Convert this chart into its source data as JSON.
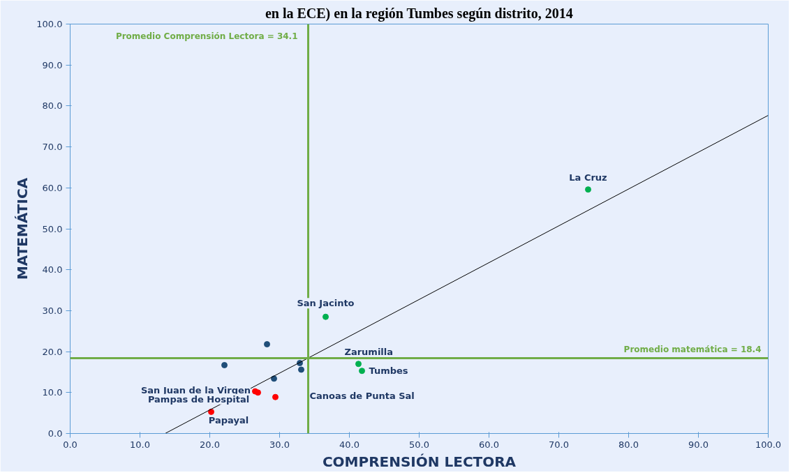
{
  "chart_data": {
    "type": "scatter",
    "title": "en la ECE) en la región Tumbes según distrito, 2014",
    "xlabel": "COMPRENSIÓN LECTORA",
    "ylabel": "MATEMÁTICA",
    "xlim": [
      0,
      100
    ],
    "ylim": [
      0,
      100
    ],
    "xticks": [
      {
        "value": 0,
        "label": "0.0"
      },
      {
        "value": 10,
        "label": "10.0"
      },
      {
        "value": 20,
        "label": "20.0"
      },
      {
        "value": 30,
        "label": "30.0"
      },
      {
        "value": 40,
        "label": "40.0"
      },
      {
        "value": 50,
        "label": "50.0"
      },
      {
        "value": 60,
        "label": "60.0"
      },
      {
        "value": 70,
        "label": "70.0"
      },
      {
        "value": 80,
        "label": "80.0"
      },
      {
        "value": 90,
        "label": "90.0"
      },
      {
        "value": 100,
        "label": "100.0"
      }
    ],
    "yticks": [
      {
        "value": 0,
        "label": "0.0"
      },
      {
        "value": 10,
        "label": "10.0"
      },
      {
        "value": 20,
        "label": "20.0"
      },
      {
        "value": 30,
        "label": "30.0"
      },
      {
        "value": 40,
        "label": "40.0"
      },
      {
        "value": 50,
        "label": "50.0"
      },
      {
        "value": 60,
        "label": "60.0"
      },
      {
        "value": 70,
        "label": "70.0"
      },
      {
        "value": 80,
        "label": "80.0"
      },
      {
        "value": 90,
        "label": "90.0"
      },
      {
        "value": 100,
        "label": "100.0"
      }
    ],
    "grid": false,
    "marker": "circle",
    "series": [
      {
        "color": "#00b050",
        "x": [
          36.6,
          41.3,
          41.8,
          74.2
        ],
        "values": [
          28.5,
          17.0,
          15.3,
          59.6
        ]
      },
      {
        "color": "#1f4e79",
        "x": [
          28.2,
          22.1,
          32.9,
          33.1,
          29.2
        ],
        "values": [
          21.8,
          16.7,
          17.2,
          15.6,
          13.4
        ]
      },
      {
        "color": "#ff0000",
        "x": [
          26.5,
          26.9,
          29.4,
          20.2
        ],
        "values": [
          10.3,
          10.0,
          8.9,
          5.3
        ]
      },
      {
        "type": "line",
        "marker": "none",
        "color": "#000000",
        "x": [
          13.6,
          100
        ],
        "values": [
          0,
          77.7
        ]
      }
    ],
    "ref_lines": [
      {
        "axis": "x",
        "value": 34.1,
        "label": "Promedio Comprensión Lectora = 34.1",
        "color": "#70ad47"
      },
      {
        "axis": "y",
        "value": 18.4,
        "label": "Promedio matemática = 18.4",
        "color": "#70ad47"
      }
    ],
    "annotations": [
      {
        "text": "La Cruz",
        "x": 74.2,
        "y": 59.6
      },
      {
        "text": "San Jacinto",
        "x": 36.6,
        "y": 28.5
      },
      {
        "text": "Zarumilla",
        "x": 41.3,
        "y": 17.0
      },
      {
        "text": "Tumbes",
        "x": 41.8,
        "y": 15.3
      },
      {
        "text": "Canoas de Punta Sal",
        "x": 33.1,
        "y": 15.6
      },
      {
        "text": "San Juan de la Virgen",
        "x": 26.5,
        "y": 10.3
      },
      {
        "text": "Pampas de Hospital",
        "x": 26.9,
        "y": 10.0
      },
      {
        "text": "Papayal",
        "x": 20.2,
        "y": 5.3
      }
    ]
  }
}
